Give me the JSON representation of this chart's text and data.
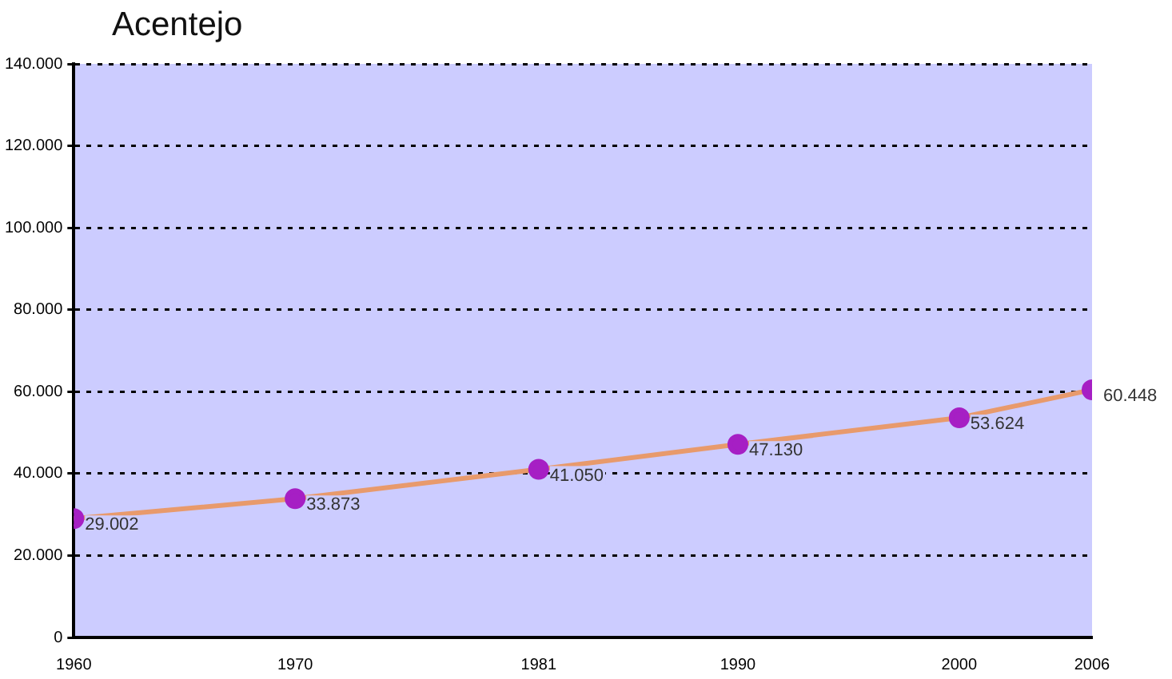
{
  "chart_data": {
    "type": "line",
    "title": "Acentejo",
    "x": [
      1960,
      1970,
      1981,
      1990,
      2000,
      2006
    ],
    "series": [
      {
        "color": "#e89a6c",
        "values": [
          29002,
          33873,
          41050,
          47130,
          53624,
          60448
        ],
        "value_labels": [
          "29.002",
          "33.873",
          "41.050",
          "47.130",
          "53.624",
          "60.448"
        ]
      }
    ],
    "xlim": [
      1960,
      2006
    ],
    "xticks": [
      1960,
      1970,
      1981,
      1990,
      2000,
      2006
    ],
    "ylim": [
      0,
      140000
    ],
    "yticks": [
      0,
      {
        "value": 20000,
        "label": "20.000"
      },
      {
        "value": 40000,
        "label": "40.000"
      },
      {
        "value": 60000,
        "label": "60.000"
      },
      {
        "value": 80000,
        "label": "80.000"
      },
      {
        "value": 100000,
        "label": "100.000"
      },
      {
        "value": 120000,
        "label": "120.000"
      },
      {
        "value": 140000,
        "label": "140.000"
      }
    ],
    "grid": "y",
    "marker": "circle",
    "line_style": "solid",
    "legend": false
  }
}
